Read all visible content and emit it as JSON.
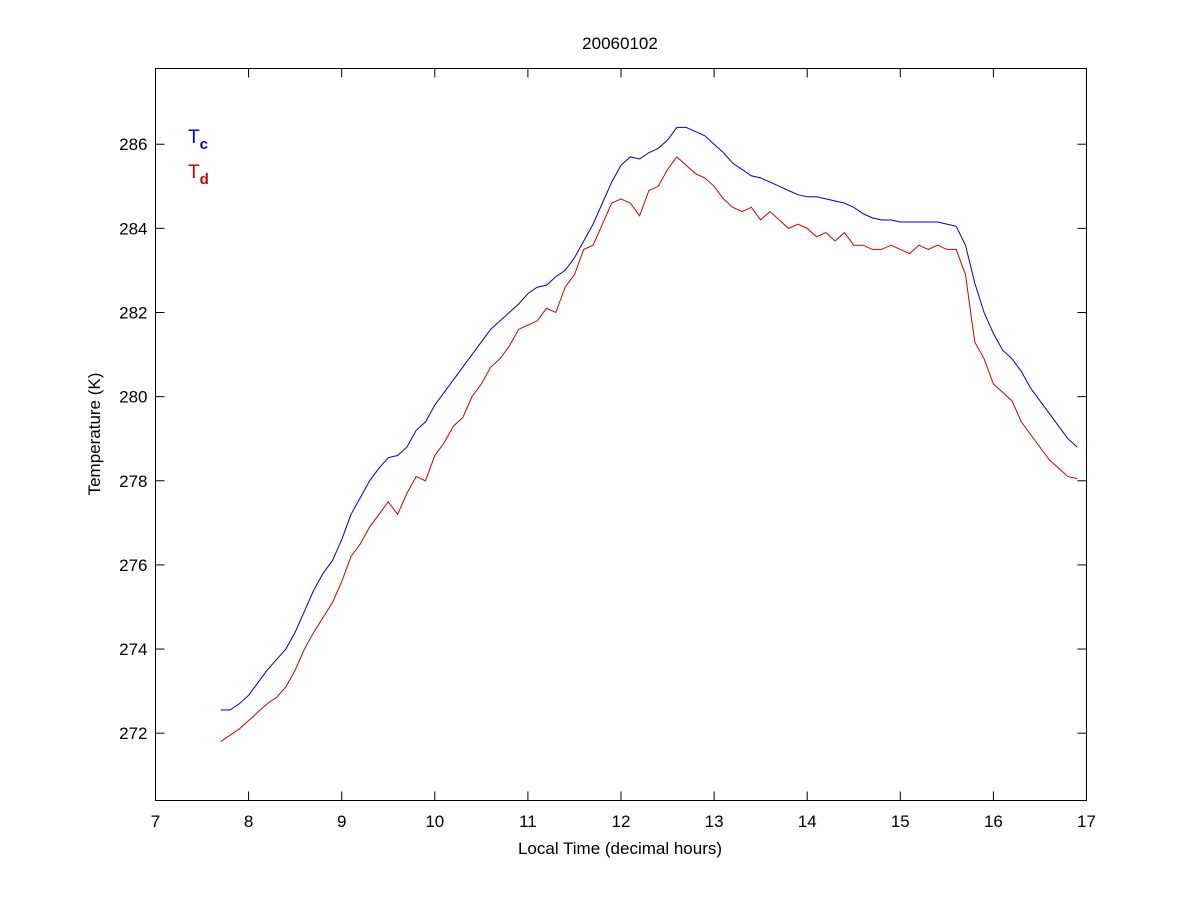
{
  "chart_data": {
    "type": "line",
    "title": "20060102",
    "x_label": "Local Time (decimal hours)",
    "y_label": "Temperature (K)",
    "x": [
      7.7,
      7.8,
      7.9,
      8.0,
      8.1,
      8.2,
      8.3,
      8.4,
      8.5,
      8.6,
      8.7,
      8.8,
      8.9,
      9.0,
      9.1,
      9.2,
      9.3,
      9.4,
      9.5,
      9.6,
      9.7,
      9.8,
      9.9,
      10.0,
      10.1,
      10.2,
      10.3,
      10.4,
      10.5,
      10.6,
      10.7,
      10.8,
      10.9,
      11.0,
      11.1,
      11.2,
      11.3,
      11.4,
      11.5,
      11.6,
      11.7,
      11.8,
      11.9,
      12.0,
      12.1,
      12.2,
      12.3,
      12.4,
      12.5,
      12.6,
      12.7,
      12.8,
      12.9,
      13.0,
      13.1,
      13.2,
      13.3,
      13.4,
      13.5,
      13.6,
      13.7,
      13.8,
      13.9,
      14.0,
      14.1,
      14.2,
      14.3,
      14.4,
      14.5,
      14.6,
      14.7,
      14.8,
      14.9,
      15.0,
      15.1,
      15.2,
      15.3,
      15.4,
      15.5,
      15.6,
      15.7,
      15.8,
      15.9,
      16.0,
      16.1,
      16.2,
      16.3,
      16.4,
      16.5,
      16.6,
      16.7,
      16.8,
      16.9
    ],
    "series": [
      {
        "name": "Tc",
        "color": "#0000cc",
        "values": [
          272.55,
          272.55,
          272.7,
          272.9,
          273.2,
          273.5,
          273.75,
          274.0,
          274.4,
          274.9,
          275.4,
          275.8,
          276.1,
          276.6,
          277.2,
          277.6,
          278.0,
          278.3,
          278.55,
          278.6,
          278.8,
          279.2,
          279.4,
          279.8,
          280.1,
          280.4,
          280.7,
          281.0,
          281.3,
          281.6,
          281.8,
          282.0,
          282.2,
          282.45,
          282.6,
          282.65,
          282.85,
          283.0,
          283.3,
          283.7,
          284.1,
          284.6,
          285.1,
          285.5,
          285.7,
          285.65,
          285.8,
          285.9,
          286.1,
          286.4,
          286.4,
          286.3,
          286.2,
          286.0,
          285.8,
          285.55,
          285.4,
          285.25,
          285.2,
          285.1,
          285.0,
          284.9,
          284.8,
          284.75,
          284.75,
          284.7,
          284.65,
          284.6,
          284.5,
          284.35,
          284.25,
          284.2,
          284.2,
          284.15,
          284.15,
          284.15,
          284.15,
          284.15,
          284.1,
          284.05,
          283.6,
          282.7,
          282.0,
          281.5,
          281.1,
          280.9,
          280.6,
          280.2,
          279.9,
          279.6,
          279.3,
          279.0,
          278.8
        ]
      },
      {
        "name": "Td",
        "color": "#cc0000",
        "values": [
          271.8,
          271.95,
          272.1,
          272.3,
          272.5,
          272.7,
          272.85,
          273.1,
          273.5,
          274.0,
          274.4,
          274.75,
          275.1,
          275.6,
          276.2,
          276.5,
          276.9,
          277.2,
          277.5,
          277.2,
          277.7,
          278.1,
          278.0,
          278.6,
          278.9,
          279.3,
          279.5,
          280.0,
          280.3,
          280.7,
          280.9,
          281.2,
          281.6,
          281.7,
          281.8,
          282.1,
          282.0,
          282.6,
          282.9,
          283.5,
          283.6,
          284.1,
          284.6,
          284.7,
          284.6,
          284.3,
          284.9,
          285.0,
          285.4,
          285.7,
          285.5,
          285.3,
          285.2,
          285.0,
          284.7,
          284.5,
          284.4,
          284.5,
          284.2,
          284.4,
          284.2,
          284.0,
          284.1,
          284.0,
          283.8,
          283.9,
          283.7,
          283.9,
          283.6,
          283.6,
          283.5,
          283.5,
          283.6,
          283.5,
          283.4,
          283.6,
          283.5,
          283.6,
          283.5,
          283.5,
          282.9,
          281.3,
          280.9,
          280.3,
          280.1,
          279.9,
          279.4,
          279.1,
          278.8,
          278.5,
          278.3,
          278.1,
          278.05
        ]
      }
    ],
    "xlim": [
      7,
      17
    ],
    "xticks": [
      7,
      8,
      9,
      10,
      11,
      12,
      13,
      14,
      15,
      16,
      17
    ],
    "ylim": [
      270.4,
      287.8
    ],
    "yticks": [
      272,
      274,
      276,
      278,
      280,
      282,
      284,
      286
    ],
    "grid": false,
    "legend": "upper-left"
  }
}
